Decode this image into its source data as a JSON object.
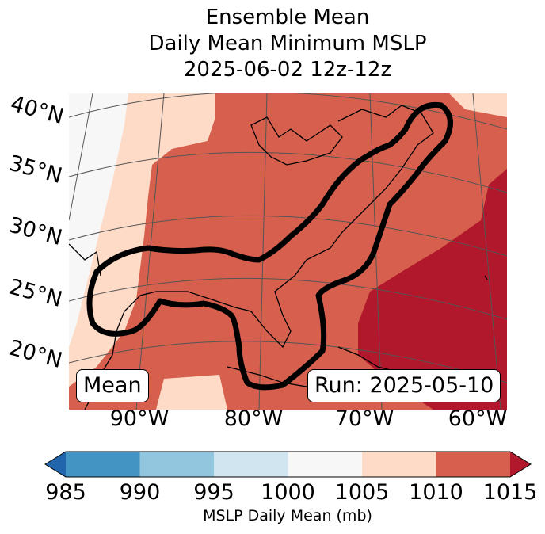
{
  "title_lines": [
    "Ensemble Mean",
    "Daily Mean Minimum MSLP",
    "2025-06-02 12z-12z"
  ],
  "lat_labels": [
    "40°N",
    "35°N",
    "30°N",
    "25°N",
    "20°N"
  ],
  "lon_labels": [
    "90°W",
    "80°W",
    "70°W",
    "60°W"
  ],
  "mean_label": "Mean",
  "run_label": "Run: 2025-05-10",
  "chart_data": {
    "type": "heatmap",
    "title": "Ensemble Mean Daily Mean Minimum MSLP 2025-06-02 12z-12z",
    "colorbar": {
      "label": "MSLP Daily Mean (mb)",
      "ticks": [
        "985",
        "990",
        "995",
        "1000",
        "1005",
        "1010",
        "1015"
      ],
      "bins": [
        {
          "range": "<985",
          "color": "#2166ac"
        },
        {
          "range": "985-990",
          "color": "#4393c3"
        },
        {
          "range": "990-995",
          "color": "#92c5de"
        },
        {
          "range": "995-1000",
          "color": "#d1e5f0"
        },
        {
          "range": "1000-1005",
          "color": "#f7f7f7"
        },
        {
          "range": "1005-1010",
          "color": "#fddbc7"
        },
        {
          "range": "1010-1015",
          "color": "#d6604d"
        },
        {
          "range": ">1015",
          "color": "#b2182b"
        }
      ],
      "extend": "both"
    },
    "lon_range": [
      "95°W",
      "58°W"
    ],
    "lat_range": [
      "17°N",
      "42°N"
    ]
  }
}
